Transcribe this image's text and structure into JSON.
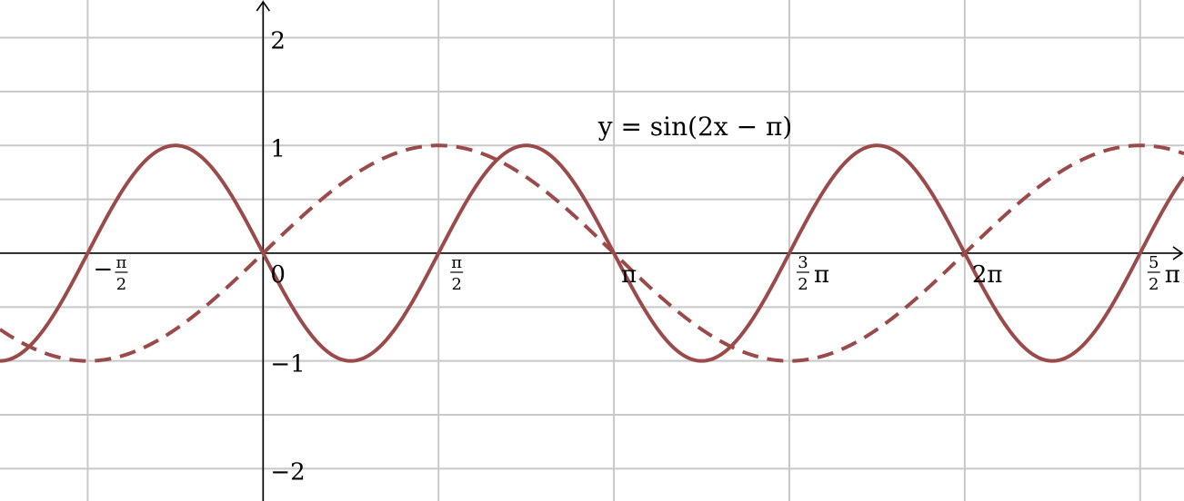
{
  "chart_data": {
    "type": "line",
    "title": "",
    "xlabel": "",
    "ylabel": "",
    "xlim": [
      -2.3562,
      8.2467
    ],
    "ylim": [
      -2.3,
      2.35
    ],
    "grid": true,
    "x_gridlines": [
      -1.5708,
      0,
      1.5708,
      3.1416,
      4.7124,
      6.2832,
      7.854
    ],
    "y_gridlines": [
      -2,
      -1.5,
      -1,
      -0.5,
      0.5,
      1,
      1.5,
      2
    ],
    "x_ticks": [
      {
        "value": -1.5708,
        "label": "−",
        "num": "π",
        "den": "2"
      },
      {
        "value": 0,
        "label": "0"
      },
      {
        "value": 1.5708,
        "label": "",
        "num": "π",
        "den": "2"
      },
      {
        "value": 3.1416,
        "label": "π"
      },
      {
        "value": 4.7124,
        "label": "π",
        "num": "3",
        "den": "2"
      },
      {
        "value": 6.2832,
        "label": "2π"
      },
      {
        "value": 7.854,
        "label": "π",
        "num": "5",
        "den": "2"
      }
    ],
    "y_ticks": [
      {
        "value": 2,
        "label": "2"
      },
      {
        "value": 1,
        "label": "1"
      },
      {
        "value": -1,
        "label": "−1"
      },
      {
        "value": -2,
        "label": "−2"
      }
    ],
    "series": [
      {
        "name": "y = sin(2x − π)",
        "function": "sin(2x - pi)",
        "style": "solid",
        "color": "#9b4a4a"
      },
      {
        "name": "",
        "function": "sin(x)",
        "style": "dashed",
        "color": "#9b4a4a"
      }
    ],
    "annotation": {
      "text": "y = sin(2x − π)",
      "x": 3.0,
      "y": 1.18
    }
  }
}
